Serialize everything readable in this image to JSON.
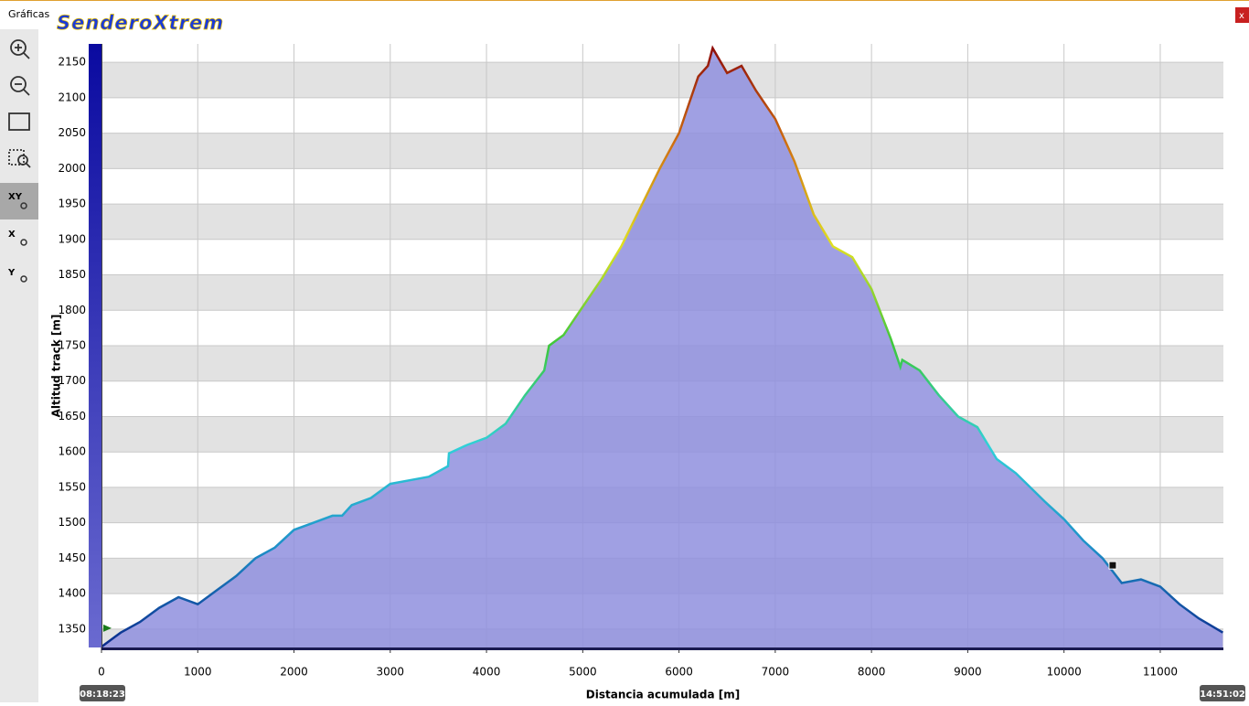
{
  "window": {
    "title": "Gráficas",
    "logo": "SenderoXtrem",
    "close": "x"
  },
  "toolbar": {
    "xy": "XY",
    "x": "X",
    "y": "Y"
  },
  "chart_data": {
    "type": "area",
    "y_label": "Altitud track [m]",
    "x_label": "Distancia acumulada [m]",
    "x_start_label": "08:18:23",
    "x_end_label": "14:51:02",
    "x": [
      0,
      200,
      400,
      600,
      800,
      1000,
      1200,
      1400,
      1600,
      1800,
      2000,
      2200,
      2400,
      2500,
      2600,
      2800,
      3000,
      3200,
      3400,
      3600,
      3610,
      3800,
      4000,
      4200,
      4400,
      4600,
      4650,
      4800,
      5000,
      5200,
      5400,
      5600,
      5800,
      6000,
      6100,
      6200,
      6300,
      6350,
      6500,
      6650,
      6800,
      7000,
      7200,
      7400,
      7600,
      7800,
      8000,
      8200,
      8300,
      8320,
      8500,
      8700,
      8900,
      9100,
      9300,
      9500,
      9800,
      10000,
      10200,
      10400,
      10600,
      10800,
      11000,
      11200,
      11400,
      11650
    ],
    "series": [
      {
        "name": "Altitud track",
        "values": [
          1325,
          1345,
          1360,
          1380,
          1395,
          1385,
          1405,
          1425,
          1450,
          1465,
          1490,
          1500,
          1510,
          1510,
          1525,
          1535,
          1555,
          1560,
          1565,
          1580,
          1598,
          1610,
          1620,
          1640,
          1680,
          1715,
          1750,
          1765,
          1805,
          1845,
          1890,
          1945,
          2000,
          2050,
          2090,
          2130,
          2145,
          2170,
          2135,
          2145,
          2110,
          2070,
          2010,
          1935,
          1890,
          1875,
          1830,
          1760,
          1720,
          1730,
          1715,
          1680,
          1650,
          1635,
          1590,
          1570,
          1530,
          1505,
          1475,
          1450,
          1415,
          1420,
          1410,
          1385,
          1365,
          1345
        ]
      }
    ],
    "fill_color": "#8f8fde",
    "color_scale": [
      "#0a2a8c",
      "#1e90c8",
      "#30d0d8",
      "#3cc83c",
      "#e0e020",
      "#d07010",
      "#8c0a0a"
    ],
    "marker": {
      "x": 10506,
      "y": 1440
    },
    "xlim": [
      0,
      11656
    ],
    "xticks": [
      0,
      1000,
      2000,
      3000,
      4000,
      5000,
      6000,
      7000,
      8000,
      9000,
      10000,
      11000
    ],
    "ylim": [
      1324,
      2176
    ],
    "yticks": [
      1350,
      1400,
      1450,
      1500,
      1550,
      1600,
      1650,
      1700,
      1750,
      1800,
      1850,
      1900,
      1950,
      2000,
      2050,
      2100,
      2150
    ],
    "grid": true
  }
}
